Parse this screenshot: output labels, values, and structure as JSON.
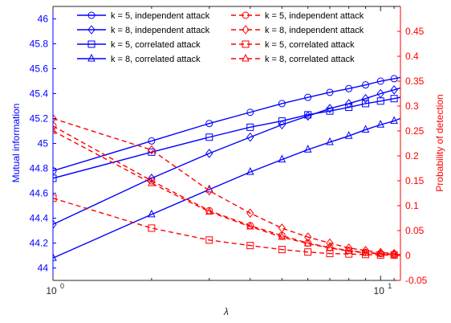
{
  "chart_data": {
    "type": "line",
    "title": "",
    "xlabel": "λ",
    "x_scale": "log",
    "x_ticks": [
      {
        "value": 1,
        "base": "10",
        "exp": "0"
      },
      {
        "value": 10,
        "base": "10",
        "exp": "1"
      }
    ],
    "xlim": [
      1,
      11.5
    ],
    "x": [
      1,
      2,
      3,
      4,
      5,
      6,
      7,
      8,
      9,
      10,
      11,
      12
    ],
    "left_axis": {
      "label": "Mutual information",
      "color": "#0000ff",
      "ylim": [
        43.9,
        46.1
      ],
      "ticks": [
        "44",
        "44.2",
        "44.4",
        "44.6",
        "44.8",
        "45",
        "45.2",
        "45.4",
        "45.6",
        "45.8",
        "46"
      ]
    },
    "right_axis": {
      "label": "Probability of detection",
      "color": "#ff0000",
      "ylim": [
        -0.05,
        0.5
      ],
      "ticks": [
        "-0.05",
        "0",
        "0.05",
        "0.1",
        "0.15",
        "0.2",
        "0.25",
        "0.3",
        "0.35",
        "0.4",
        "0.45"
      ]
    },
    "grid": false,
    "legend_position": "top",
    "series": [
      {
        "name": "k = 5, independent attack",
        "axis": "left",
        "color": "#0000ff",
        "dash": "solid",
        "marker": "circle",
        "values": [
          44.78,
          45.02,
          45.16,
          45.25,
          45.32,
          45.37,
          45.41,
          45.44,
          45.47,
          45.5,
          45.52,
          45.54
        ]
      },
      {
        "name": "k = 8, independent attack",
        "axis": "left",
        "color": "#0000ff",
        "dash": "solid",
        "marker": "diamond",
        "values": [
          44.35,
          44.72,
          44.92,
          45.05,
          45.15,
          45.22,
          45.28,
          45.32,
          45.36,
          45.4,
          45.43,
          45.46
        ]
      },
      {
        "name": "k = 5, correlated attack",
        "axis": "left",
        "color": "#0000ff",
        "dash": "solid",
        "marker": "square",
        "values": [
          44.72,
          44.93,
          45.05,
          45.13,
          45.18,
          45.23,
          45.26,
          45.29,
          45.32,
          45.34,
          45.36,
          45.38
        ]
      },
      {
        "name": "k = 8, correlated attack",
        "axis": "left",
        "color": "#0000ff",
        "dash": "solid",
        "marker": "triangle",
        "values": [
          44.08,
          44.43,
          44.63,
          44.77,
          44.87,
          44.95,
          45.01,
          45.06,
          45.11,
          45.15,
          45.18,
          45.22
        ]
      },
      {
        "name": "k = 5, independent attack",
        "axis": "right",
        "color": "#ff0000",
        "dash": "dashed",
        "marker": "circle",
        "values": [
          0.26,
          0.15,
          0.09,
          0.06,
          0.04,
          0.025,
          0.016,
          0.01,
          0.006,
          0.004,
          0.002,
          0.001
        ]
      },
      {
        "name": "k = 8, independent attack",
        "axis": "right",
        "color": "#ff0000",
        "dash": "dashed",
        "marker": "diamond",
        "values": [
          0.275,
          0.212,
          0.13,
          0.085,
          0.055,
          0.037,
          0.025,
          0.015,
          0.01,
          0.006,
          0.004,
          0.002
        ]
      },
      {
        "name": "k = 5, correlated attack",
        "axis": "right",
        "color": "#ff0000",
        "dash": "dashed",
        "marker": "square",
        "values": [
          0.115,
          0.055,
          0.031,
          0.02,
          0.012,
          0.007,
          0.004,
          0.003,
          0.002,
          0.001,
          0.001,
          0.0
        ]
      },
      {
        "name": "k = 8, correlated attack",
        "axis": "right",
        "color": "#ff0000",
        "dash": "dashed",
        "marker": "triangle",
        "values": [
          0.25,
          0.145,
          0.088,
          0.058,
          0.037,
          0.024,
          0.015,
          0.009,
          0.005,
          0.003,
          0.002,
          0.001
        ]
      }
    ]
  }
}
